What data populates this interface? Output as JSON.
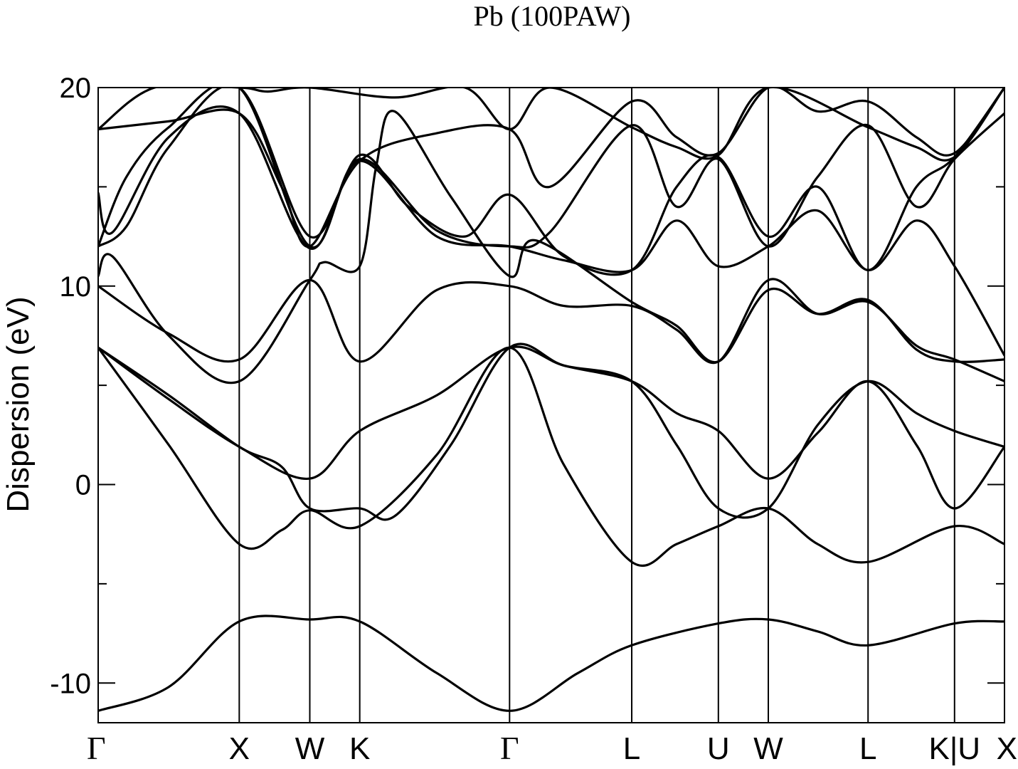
{
  "chart_data": {
    "type": "line",
    "title": "Pb (100PAW)",
    "ylabel": "Dispersion (eV)",
    "xlabel": "",
    "ylim": [
      -12,
      20
    ],
    "yticks": [
      -10,
      0,
      10,
      20
    ],
    "y_minor_ticks": [
      -5,
      5,
      15
    ],
    "grid": false,
    "x_path": {
      "labels": [
        "Γ",
        "X",
        "W",
        "K",
        "Γ",
        "L",
        "U",
        "W",
        "L",
        "K|U",
        "X"
      ],
      "positions": [
        0,
        1.0,
        1.5,
        1.854,
        2.916,
        3.782,
        4.396,
        4.75,
        5.457,
        6.07,
        6.424
      ]
    },
    "line_color": "#000000",
    "bands": [
      {
        "name": "band-1",
        "points": [
          [
            0,
            -11.4
          ],
          [
            0.5,
            -10.2
          ],
          [
            1.0,
            -6.9
          ],
          [
            1.5,
            -6.8
          ],
          [
            1.854,
            -6.9
          ],
          [
            2.4,
            -9.5
          ],
          [
            2.916,
            -11.4
          ],
          [
            3.4,
            -9.5
          ],
          [
            3.782,
            -8.1
          ],
          [
            4.396,
            -7.0
          ],
          [
            4.75,
            -6.8
          ],
          [
            5.1,
            -7.4
          ],
          [
            5.457,
            -8.1
          ],
          [
            6.07,
            -7.0
          ],
          [
            6.424,
            -6.9
          ]
        ]
      },
      {
        "name": "band-2",
        "points": [
          [
            0,
            6.9
          ],
          [
            0.5,
            2.0
          ],
          [
            1.0,
            -3.0
          ],
          [
            1.3,
            -2.3
          ],
          [
            1.5,
            -1.3
          ],
          [
            1.854,
            -2.1
          ],
          [
            2.4,
            1.5
          ],
          [
            2.916,
            6.9
          ],
          [
            3.3,
            1.0
          ],
          [
            3.782,
            -3.9
          ],
          [
            4.1,
            -3.0
          ],
          [
            4.396,
            -2.1
          ],
          [
            4.75,
            -1.2
          ],
          [
            5.1,
            -3.0
          ],
          [
            5.457,
            -3.9
          ],
          [
            6.07,
            -2.1
          ],
          [
            6.424,
            -3.0
          ]
        ]
      },
      {
        "name": "band-3",
        "points": [
          [
            0,
            6.9
          ],
          [
            0.5,
            4.5
          ],
          [
            1.0,
            1.9
          ],
          [
            1.3,
            0.9
          ],
          [
            1.5,
            -1.2
          ],
          [
            1.854,
            -1.2
          ],
          [
            2.1,
            -1.6
          ],
          [
            2.5,
            2.0
          ],
          [
            2.916,
            6.9
          ],
          [
            3.3,
            6.0
          ],
          [
            3.782,
            5.2
          ],
          [
            4.1,
            3.6
          ],
          [
            4.396,
            2.7
          ],
          [
            4.75,
            0.3
          ],
          [
            5.1,
            2.6
          ],
          [
            5.457,
            5.2
          ],
          [
            5.8,
            2.0
          ],
          [
            6.07,
            -1.2
          ],
          [
            6.424,
            1.9
          ]
        ]
      },
      {
        "name": "band-4",
        "points": [
          [
            0,
            6.9
          ],
          [
            0.5,
            4.3
          ],
          [
            1.0,
            1.9
          ],
          [
            1.5,
            0.3
          ],
          [
            1.854,
            2.7
          ],
          [
            2.4,
            4.5
          ],
          [
            2.916,
            6.9
          ],
          [
            3.3,
            6.0
          ],
          [
            3.782,
            5.2
          ],
          [
            4.1,
            2.0
          ],
          [
            4.396,
            -1.2
          ],
          [
            4.75,
            -1.2
          ],
          [
            5.1,
            3.0
          ],
          [
            5.457,
            5.2
          ],
          [
            5.8,
            3.6
          ],
          [
            6.07,
            2.7
          ],
          [
            6.424,
            1.9
          ]
        ]
      },
      {
        "name": "band-5",
        "points": [
          [
            0,
            10.0
          ],
          [
            0.5,
            7.6
          ],
          [
            1.0,
            6.3
          ],
          [
            1.5,
            10.3
          ],
          [
            1.854,
            6.2
          ],
          [
            2.4,
            9.8
          ],
          [
            2.916,
            10.0
          ],
          [
            3.3,
            9.0
          ],
          [
            3.782,
            9.0
          ],
          [
            4.1,
            7.8
          ],
          [
            4.396,
            6.2
          ],
          [
            4.75,
            10.3
          ],
          [
            5.1,
            8.6
          ],
          [
            5.457,
            9.2
          ],
          [
            5.8,
            7.0
          ],
          [
            6.07,
            6.3
          ],
          [
            6.424,
            5.2
          ]
        ]
      },
      {
        "name": "band-6",
        "points": [
          [
            0,
            10.5
          ],
          [
            0.1,
            11.5
          ],
          [
            0.5,
            7.5
          ],
          [
            1.0,
            5.2
          ],
          [
            1.5,
            10.3
          ],
          [
            1.6,
            11.2
          ],
          [
            1.854,
            11.0
          ],
          [
            1.97,
            16.0
          ],
          [
            2.1,
            18.8
          ],
          [
            2.5,
            14.5
          ],
          [
            2.916,
            10.5
          ],
          [
            3.1,
            12.3
          ],
          [
            3.782,
            9.2
          ],
          [
            4.1,
            8.0
          ],
          [
            4.396,
            6.2
          ],
          [
            4.75,
            9.8
          ],
          [
            5.1,
            8.6
          ],
          [
            5.457,
            9.3
          ],
          [
            5.8,
            6.8
          ],
          [
            6.07,
            6.2
          ],
          [
            6.424,
            6.3
          ]
        ]
      },
      {
        "name": "band-7",
        "points": [
          [
            0,
            12.0
          ],
          [
            0.2,
            15.5
          ],
          [
            0.5,
            18.0
          ],
          [
            1.0,
            20.0
          ],
          [
            1.5,
            12.0
          ],
          [
            1.854,
            16.3
          ],
          [
            2.4,
            12.5
          ],
          [
            2.916,
            12.0
          ],
          [
            3.3,
            11.3
          ],
          [
            3.782,
            10.8
          ],
          [
            4.1,
            13.3
          ],
          [
            4.396,
            11.0
          ],
          [
            4.75,
            12.0
          ],
          [
            5.1,
            13.8
          ],
          [
            5.457,
            10.8
          ],
          [
            5.8,
            13.3
          ],
          [
            6.07,
            11.0
          ],
          [
            6.424,
            6.5
          ]
        ]
      },
      {
        "name": "band-8",
        "points": [
          [
            0,
            12.0
          ],
          [
            0.2,
            13.0
          ],
          [
            0.5,
            17.0
          ],
          [
            1.0,
            20.0
          ],
          [
            1.5,
            12.5
          ],
          [
            1.854,
            16.6
          ],
          [
            2.2,
            14.0
          ],
          [
            2.6,
            12.5
          ],
          [
            2.916,
            14.6
          ],
          [
            3.3,
            11.5
          ],
          [
            3.782,
            10.8
          ],
          [
            4.1,
            15.0
          ],
          [
            4.396,
            16.5
          ],
          [
            4.75,
            12.5
          ],
          [
            5.1,
            15.0
          ],
          [
            5.457,
            10.8
          ],
          [
            5.8,
            15.0
          ],
          [
            6.07,
            16.5
          ],
          [
            6.424,
            20.0
          ]
        ]
      },
      {
        "name": "band-9",
        "points": [
          [
            0,
            14.7
          ],
          [
            0.1,
            12.7
          ],
          [
            0.5,
            17.5
          ],
          [
            1.0,
            18.7
          ],
          [
            1.5,
            11.9
          ],
          [
            1.854,
            16.4
          ],
          [
            2.4,
            12.8
          ],
          [
            2.916,
            12.0
          ],
          [
            3.2,
            12.7
          ],
          [
            3.782,
            18.1
          ],
          [
            4.1,
            14.0
          ],
          [
            4.396,
            16.4
          ],
          [
            4.75,
            12.0
          ],
          [
            5.1,
            15.5
          ],
          [
            5.457,
            18.1
          ],
          [
            5.8,
            14.0
          ],
          [
            6.07,
            16.4
          ],
          [
            6.424,
            18.7
          ]
        ]
      },
      {
        "name": "band-10",
        "points": [
          [
            0,
            17.9
          ],
          [
            0.5,
            18.3
          ],
          [
            1.0,
            18.7
          ],
          [
            1.3,
            15.0
          ],
          [
            1.5,
            12.0
          ],
          [
            1.854,
            16.3
          ],
          [
            2.4,
            17.7
          ],
          [
            2.916,
            17.9
          ],
          [
            3.2,
            15.0
          ],
          [
            3.782,
            19.3
          ],
          [
            4.1,
            17.5
          ],
          [
            4.396,
            16.7
          ],
          [
            4.75,
            20.0
          ],
          [
            5.1,
            18.8
          ],
          [
            5.457,
            19.3
          ],
          [
            5.8,
            17.5
          ],
          [
            6.07,
            16.7
          ],
          [
            6.424,
            20.0
          ]
        ]
      },
      {
        "name": "band-11",
        "points": [
          [
            0,
            17.9
          ],
          [
            0.4,
            20.0
          ],
          [
            1.0,
            20.0
          ],
          [
            1.2,
            19.8
          ],
          [
            1.5,
            20.0
          ],
          [
            2.1,
            19.5
          ],
          [
            2.6,
            20.0
          ],
          [
            2.916,
            17.9
          ],
          [
            3.2,
            20.0
          ],
          [
            3.782,
            18.0
          ],
          [
            4.1,
            17.0
          ],
          [
            4.396,
            16.6
          ],
          [
            4.75,
            20.0
          ],
          [
            5.457,
            18.0
          ],
          [
            5.8,
            17.0
          ],
          [
            6.07,
            16.5
          ],
          [
            6.424,
            20.0
          ]
        ]
      }
    ]
  }
}
